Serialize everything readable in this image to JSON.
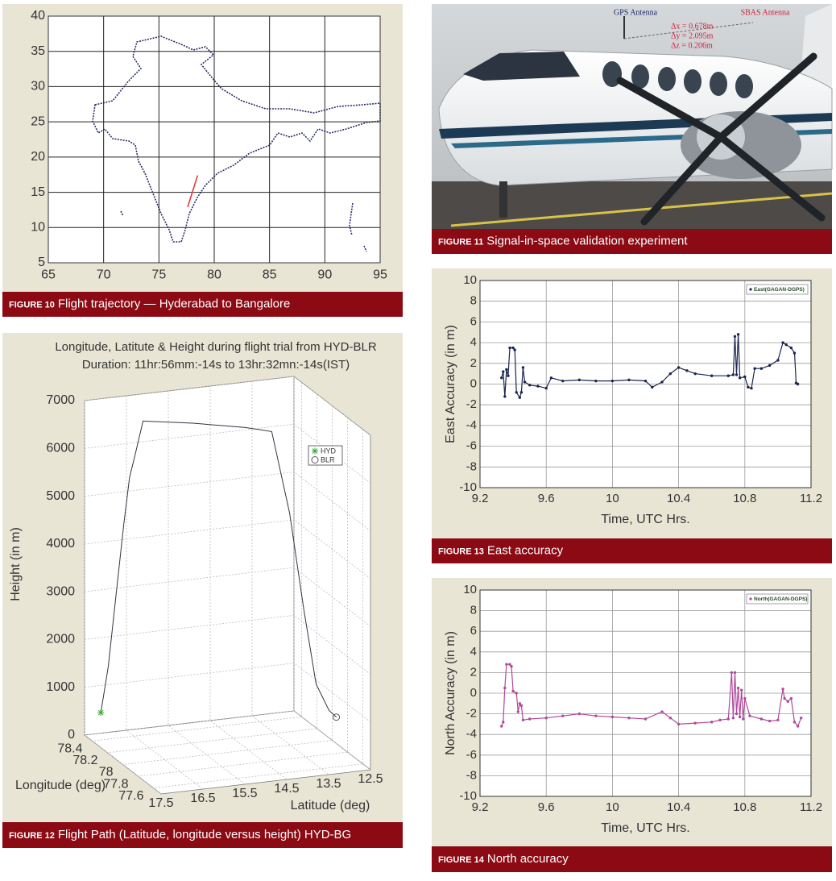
{
  "figures": [
    {
      "label": "FIGURE 10",
      "caption": "Flight trajectory — Hyderabad to Bangalore"
    },
    {
      "label": "FIGURE 11",
      "caption": "Signal-in-space validation experiment"
    },
    {
      "label": "FIGURE 12",
      "caption": "Flight Path (Latitude, longitude versus height) HYD-BG"
    },
    {
      "label": "FIGURE 13",
      "caption": "East accuracy"
    },
    {
      "label": "FIGURE 14",
      "caption": "North accuracy"
    }
  ],
  "photo": {
    "annotations": [
      "GPS Antenna",
      "SBAS Antenna",
      "Δx = 0.678m",
      "Δy = 2.095m",
      "Δz = 0.206m"
    ]
  },
  "chart_data": [
    {
      "type": "line",
      "xlim": [
        65,
        95
      ],
      "xticks": [
        65,
        70,
        75,
        80,
        85,
        90,
        95
      ],
      "ylim": [
        5,
        40
      ],
      "yticks": [
        5,
        10,
        15,
        20,
        25,
        30,
        35,
        40
      ],
      "grid": true,
      "series": [
        {
          "color": "#e03a3a",
          "x": [
            77.6,
            78.5
          ],
          "values": [
            12.9,
            17.4
          ]
        }
      ]
    },
    {
      "type": "line3d",
      "title": "Longitude, Latitute & Height during flight trial from HYD-BLR",
      "subtitle": "Duration: 11hr:56mm:-14s to 13hr:32mn:-14s(IST)",
      "xlabel": "Longitude (deg)",
      "ylabel": "Latitude (deg)",
      "zlabel": "Height (in m)",
      "xlim": [
        78.5,
        77.5
      ],
      "xticks": [
        78.4,
        78.2,
        78,
        77.8,
        77.6
      ],
      "ylim": [
        17.5,
        12.5
      ],
      "yticks": [
        17.5,
        16.5,
        15.5,
        14.5,
        13.5,
        12.5
      ],
      "zlim": [
        0,
        7000
      ],
      "zticks": [
        0,
        1000,
        2000,
        3000,
        4000,
        5000,
        6000,
        7000
      ],
      "grid": true,
      "color": "#333344",
      "x": [
        78.43,
        78.41,
        78.39,
        78.37,
        78.35,
        78.33,
        78.31,
        78.18,
        78.04,
        77.97,
        77.9,
        77.85,
        77.8,
        77.74,
        77.7
      ],
      "y": [
        17.24,
        17.1,
        16.95,
        16.8,
        16.7,
        16.6,
        16.45,
        15.5,
        14.5,
        14.0,
        13.7,
        13.45,
        13.25,
        13.05,
        12.95
      ],
      "values": [
        530,
        1500,
        3000,
        4500,
        5500,
        6000,
        6700,
        6720,
        6700,
        6650,
        5000,
        3000,
        1500,
        1000,
        900
      ],
      "legend": "upper right",
      "points": [
        {
          "name": "HYD",
          "color": "#3aa83a",
          "marker": "star",
          "x": 78.43,
          "y": 17.24,
          "value": 530
        },
        {
          "name": "BLR",
          "color": "#555555",
          "marker": "circle",
          "x": 77.7,
          "y": 12.95,
          "value": 900
        }
      ]
    },
    {
      "type": "line",
      "xlabel": "Time, UTC Hrs.",
      "ylabel": "East Accuracy (in m)",
      "xlim": [
        9.2,
        11.2
      ],
      "xticks": [
        9.2,
        9.6,
        10,
        10.4,
        10.8,
        11.2
      ],
      "ylim": [
        -10,
        10
      ],
      "yticks": [
        -10,
        -8,
        -6,
        -4,
        -2,
        0,
        2,
        4,
        6,
        8,
        10
      ],
      "grid": true,
      "markers": true,
      "legend": "upper right",
      "series": [
        {
          "name": "East(GAGAN-DGPS)",
          "color": "#1a2550",
          "x": [
            9.33,
            9.34,
            9.35,
            9.36,
            9.37,
            9.38,
            9.4,
            9.41,
            9.42,
            9.44,
            9.45,
            9.46,
            9.47,
            9.5,
            9.55,
            9.6,
            9.63,
            9.7,
            9.8,
            9.9,
            10.0,
            10.1,
            10.2,
            10.24,
            10.3,
            10.35,
            10.4,
            10.45,
            10.5,
            10.6,
            10.7,
            10.73,
            10.74,
            10.75,
            10.76,
            10.77,
            10.8,
            10.82,
            10.84,
            10.86,
            10.9,
            10.95,
            11.0,
            11.03,
            11.05,
            11.08,
            11.1,
            11.11,
            11.12
          ],
          "values": [
            0.6,
            1.2,
            -1.2,
            1.4,
            0.8,
            3.5,
            3.5,
            3.3,
            -0.8,
            -1.3,
            -0.8,
            1.6,
            0.2,
            -0.1,
            -0.2,
            -0.4,
            0.6,
            0.3,
            0.4,
            0.3,
            0.3,
            0.4,
            0.3,
            -0.3,
            0.2,
            1.0,
            1.6,
            1.3,
            1.0,
            0.8,
            0.8,
            0.9,
            4.6,
            0.9,
            4.8,
            0.6,
            0.7,
            -0.3,
            -0.4,
            1.5,
            1.5,
            1.8,
            2.3,
            4.0,
            3.8,
            3.5,
            3.0,
            0.1,
            0.0
          ]
        }
      ]
    },
    {
      "type": "line",
      "xlabel": "Time, UTC Hrs.",
      "ylabel": "North Accuracy (in m)",
      "xlim": [
        9.2,
        11.2
      ],
      "xticks": [
        9.2,
        9.6,
        10,
        10.4,
        10.8,
        11.2
      ],
      "ylim": [
        -10,
        10
      ],
      "yticks": [
        -10,
        -8,
        -6,
        -4,
        -2,
        0,
        2,
        4,
        6,
        8,
        10
      ],
      "grid": true,
      "markers": true,
      "legend": "upper right",
      "series": [
        {
          "name": "North(GAGAN-DGPS)",
          "color": "#b04a9a",
          "x": [
            9.33,
            9.34,
            9.35,
            9.36,
            9.38,
            9.39,
            9.4,
            9.42,
            9.43,
            9.44,
            9.45,
            9.46,
            9.5,
            9.6,
            9.7,
            9.8,
            9.9,
            10.0,
            10.1,
            10.2,
            10.3,
            10.35,
            10.4,
            10.5,
            10.6,
            10.65,
            10.7,
            10.72,
            10.73,
            10.74,
            10.75,
            10.76,
            10.77,
            10.78,
            10.79,
            10.8,
            10.83,
            10.9,
            10.95,
            11.0,
            11.03,
            11.04,
            11.06,
            11.08,
            11.1,
            11.12,
            11.14
          ],
          "values": [
            -3.2,
            -2.8,
            0.5,
            2.8,
            2.8,
            2.6,
            0.2,
            0.0,
            -1.8,
            -1.0,
            -1.2,
            -2.6,
            -2.5,
            -2.4,
            -2.2,
            -2.0,
            -2.2,
            -2.3,
            -2.4,
            -2.5,
            -1.8,
            -2.4,
            -3.0,
            -2.9,
            -2.8,
            -2.6,
            -2.5,
            2.0,
            -2.4,
            2.0,
            -2.0,
            0.5,
            -2.3,
            0.3,
            -2.5,
            -0.5,
            -2.2,
            -2.5,
            -2.7,
            -2.6,
            0.4,
            -0.5,
            -0.8,
            -0.5,
            -2.8,
            -3.2,
            -2.4
          ]
        }
      ]
    }
  ]
}
